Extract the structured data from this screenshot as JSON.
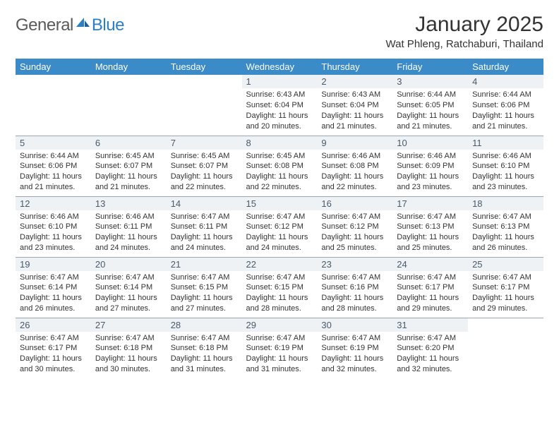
{
  "logo": {
    "text1": "General",
    "text2": "Blue"
  },
  "title": "January 2025",
  "location": "Wat Phleng, Ratchaburi, Thailand",
  "colors": {
    "header_bg": "#3b8bc9",
    "header_text": "#ffffff",
    "daynum_bg": "#eef2f5",
    "daynum_text": "#4a5a6a",
    "border": "#9aa6b2",
    "logo_gray": "#5a5a5a",
    "logo_blue": "#2a7fc9"
  },
  "weekdays": [
    "Sunday",
    "Monday",
    "Tuesday",
    "Wednesday",
    "Thursday",
    "Friday",
    "Saturday"
  ],
  "weeks": [
    [
      null,
      null,
      null,
      {
        "n": "1",
        "sr": "6:43 AM",
        "ss": "6:04 PM",
        "dl": "11 hours and 20 minutes."
      },
      {
        "n": "2",
        "sr": "6:43 AM",
        "ss": "6:04 PM",
        "dl": "11 hours and 21 minutes."
      },
      {
        "n": "3",
        "sr": "6:44 AM",
        "ss": "6:05 PM",
        "dl": "11 hours and 21 minutes."
      },
      {
        "n": "4",
        "sr": "6:44 AM",
        "ss": "6:06 PM",
        "dl": "11 hours and 21 minutes."
      }
    ],
    [
      {
        "n": "5",
        "sr": "6:44 AM",
        "ss": "6:06 PM",
        "dl": "11 hours and 21 minutes."
      },
      {
        "n": "6",
        "sr": "6:45 AM",
        "ss": "6:07 PM",
        "dl": "11 hours and 21 minutes."
      },
      {
        "n": "7",
        "sr": "6:45 AM",
        "ss": "6:07 PM",
        "dl": "11 hours and 22 minutes."
      },
      {
        "n": "8",
        "sr": "6:45 AM",
        "ss": "6:08 PM",
        "dl": "11 hours and 22 minutes."
      },
      {
        "n": "9",
        "sr": "6:46 AM",
        "ss": "6:08 PM",
        "dl": "11 hours and 22 minutes."
      },
      {
        "n": "10",
        "sr": "6:46 AM",
        "ss": "6:09 PM",
        "dl": "11 hours and 23 minutes."
      },
      {
        "n": "11",
        "sr": "6:46 AM",
        "ss": "6:10 PM",
        "dl": "11 hours and 23 minutes."
      }
    ],
    [
      {
        "n": "12",
        "sr": "6:46 AM",
        "ss": "6:10 PM",
        "dl": "11 hours and 23 minutes."
      },
      {
        "n": "13",
        "sr": "6:46 AM",
        "ss": "6:11 PM",
        "dl": "11 hours and 24 minutes."
      },
      {
        "n": "14",
        "sr": "6:47 AM",
        "ss": "6:11 PM",
        "dl": "11 hours and 24 minutes."
      },
      {
        "n": "15",
        "sr": "6:47 AM",
        "ss": "6:12 PM",
        "dl": "11 hours and 24 minutes."
      },
      {
        "n": "16",
        "sr": "6:47 AM",
        "ss": "6:12 PM",
        "dl": "11 hours and 25 minutes."
      },
      {
        "n": "17",
        "sr": "6:47 AM",
        "ss": "6:13 PM",
        "dl": "11 hours and 25 minutes."
      },
      {
        "n": "18",
        "sr": "6:47 AM",
        "ss": "6:13 PM",
        "dl": "11 hours and 26 minutes."
      }
    ],
    [
      {
        "n": "19",
        "sr": "6:47 AM",
        "ss": "6:14 PM",
        "dl": "11 hours and 26 minutes."
      },
      {
        "n": "20",
        "sr": "6:47 AM",
        "ss": "6:14 PM",
        "dl": "11 hours and 27 minutes."
      },
      {
        "n": "21",
        "sr": "6:47 AM",
        "ss": "6:15 PM",
        "dl": "11 hours and 27 minutes."
      },
      {
        "n": "22",
        "sr": "6:47 AM",
        "ss": "6:15 PM",
        "dl": "11 hours and 28 minutes."
      },
      {
        "n": "23",
        "sr": "6:47 AM",
        "ss": "6:16 PM",
        "dl": "11 hours and 28 minutes."
      },
      {
        "n": "24",
        "sr": "6:47 AM",
        "ss": "6:17 PM",
        "dl": "11 hours and 29 minutes."
      },
      {
        "n": "25",
        "sr": "6:47 AM",
        "ss": "6:17 PM",
        "dl": "11 hours and 29 minutes."
      }
    ],
    [
      {
        "n": "26",
        "sr": "6:47 AM",
        "ss": "6:17 PM",
        "dl": "11 hours and 30 minutes."
      },
      {
        "n": "27",
        "sr": "6:47 AM",
        "ss": "6:18 PM",
        "dl": "11 hours and 30 minutes."
      },
      {
        "n": "28",
        "sr": "6:47 AM",
        "ss": "6:18 PM",
        "dl": "11 hours and 31 minutes."
      },
      {
        "n": "29",
        "sr": "6:47 AM",
        "ss": "6:19 PM",
        "dl": "11 hours and 31 minutes."
      },
      {
        "n": "30",
        "sr": "6:47 AM",
        "ss": "6:19 PM",
        "dl": "11 hours and 32 minutes."
      },
      {
        "n": "31",
        "sr": "6:47 AM",
        "ss": "6:20 PM",
        "dl": "11 hours and 32 minutes."
      },
      null
    ]
  ],
  "labels": {
    "sunrise": "Sunrise:",
    "sunset": "Sunset:",
    "daylight": "Daylight:"
  }
}
